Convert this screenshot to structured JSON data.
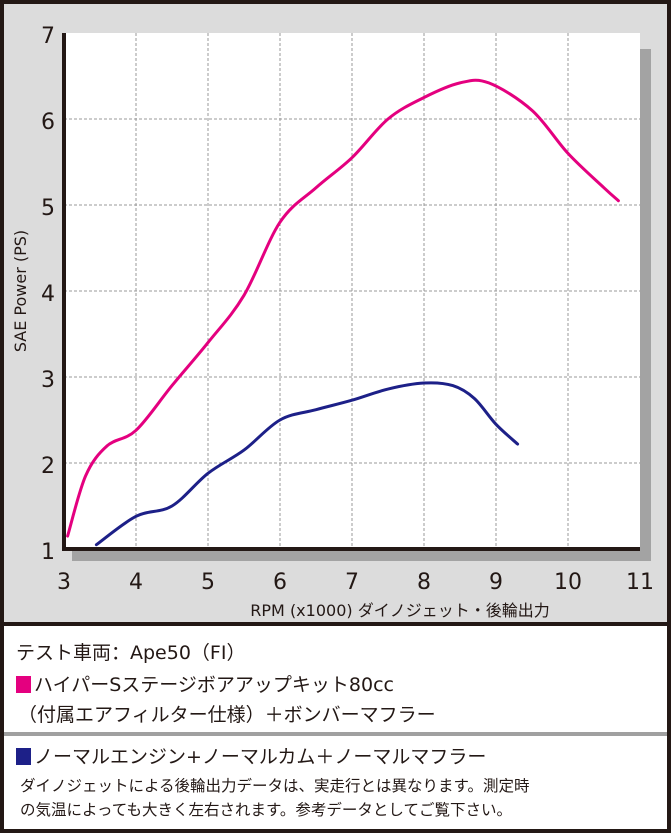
{
  "chart_data": {
    "type": "line",
    "xlabel": "RPM (x1000) ダイノジェット・後輪出力",
    "ylabel": "SAE Power (PS)",
    "xlim": [
      3,
      11
    ],
    "ylim": [
      1,
      7
    ],
    "xticks": [
      "3",
      "4",
      "5",
      "6",
      "7",
      "8",
      "9",
      "10",
      "11"
    ],
    "yticks": [
      "1",
      "2",
      "3",
      "4",
      "5",
      "6",
      "7"
    ],
    "grid": true,
    "series": [
      {
        "name": "ハイパーSステージボアアップキット80cc（付属エアフィルター仕様）＋ボンバーマフラー",
        "color": "#e4007f",
        "x": [
          3.05,
          3.3,
          3.6,
          4.0,
          4.5,
          5.0,
          5.5,
          6.0,
          6.5,
          7.0,
          7.5,
          8.0,
          8.5,
          8.9,
          9.5,
          10.0,
          10.5,
          10.7
        ],
        "y": [
          1.15,
          1.85,
          2.2,
          2.38,
          2.9,
          3.4,
          3.95,
          4.8,
          5.2,
          5.55,
          6.0,
          6.25,
          6.42,
          6.42,
          6.1,
          5.6,
          5.2,
          5.05
        ]
      },
      {
        "name": "ノーマルエンジン+ノーマルカム＋ノーマルマフラー",
        "color": "#1d2088",
        "x": [
          3.45,
          4.0,
          4.5,
          5.0,
          5.5,
          6.0,
          6.5,
          7.0,
          7.5,
          8.0,
          8.4,
          8.7,
          9.0,
          9.3
        ],
        "y": [
          1.05,
          1.38,
          1.5,
          1.88,
          2.15,
          2.5,
          2.62,
          2.73,
          2.86,
          2.93,
          2.9,
          2.75,
          2.45,
          2.22
        ]
      }
    ]
  },
  "legend": {
    "vehicle": "テスト車両：Ape50（FI）",
    "s1_line1": "ハイパーSステージボアアップキット80cc",
    "s1_line2": "（付属エアフィルター仕様）＋ボンバーマフラー",
    "s2": "ノーマルエンジン+ノーマルカム＋ノーマルマフラー",
    "note1": "ダイノジェットによる後輪出力データは、実走行とは異なります。測定時",
    "note2": "の気温によっても大きく左右されます。参考データとしてご覧下さい。"
  }
}
